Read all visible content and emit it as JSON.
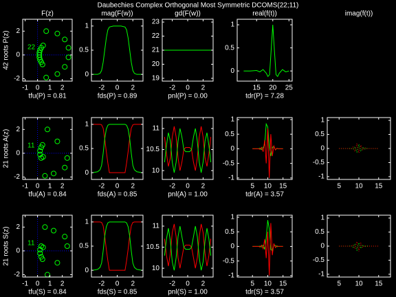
{
  "title": "Daubechies Complex Orthogonal Most Symmetric DCOMS(22;11)",
  "chart_data": [
    {
      "type": "scatter",
      "title": "F(z)",
      "xlabel": "tfu(P) = 0.81",
      "ylabel": "42 roots P(z)",
      "annotation": "22",
      "zero_lines": true,
      "xlim": [
        -1.2,
        2.8
      ],
      "ylim": [
        -2.2,
        3.0
      ],
      "xticks": [
        -1,
        0,
        1,
        2
      ],
      "yticks": [
        -2,
        0,
        2
      ],
      "series": [
        {
          "color": "#00ff00",
          "x": [
            0.7,
            1.6,
            2.2,
            2.5,
            2.5,
            2.2,
            1.6,
            0.7,
            0.3,
            0.2,
            0.15,
            0.15,
            0.15,
            0.2,
            0.3,
            0.4,
            0.45
          ],
          "values": [
            2.0,
            1.8,
            1.3,
            0.6,
            -0.2,
            -1.0,
            -1.6,
            -1.9,
            0.6,
            0.4,
            0.2,
            0.0,
            -0.2,
            -0.4,
            -0.6,
            -0.8,
            0.8
          ]
        }
      ]
    },
    {
      "type": "line",
      "title": "mag(F(w))",
      "xlabel": "fds(P) = 0.89",
      "xlim": [
        -3.3,
        3.3
      ],
      "ylim": [
        -0.14,
        1.14
      ],
      "xticks": [
        -2,
        0,
        2
      ],
      "yticks": [
        0,
        0.5,
        1
      ],
      "x": [
        -3.14,
        -2.5,
        -2.2,
        -2.0,
        -1.8,
        -1.6,
        -1.4,
        -1.2,
        -1.0,
        -0.5,
        0,
        0.5,
        1.0,
        1.2,
        1.4,
        1.6,
        1.8,
        2.0,
        2.2,
        2.5,
        3.14
      ],
      "series": [
        {
          "color": "#00ff00",
          "values": [
            0,
            0,
            0.02,
            0.08,
            0.25,
            0.5,
            0.75,
            0.92,
            0.98,
            1,
            1,
            1,
            0.98,
            0.92,
            0.75,
            0.5,
            0.25,
            0.08,
            0.02,
            0,
            0
          ]
        }
      ]
    },
    {
      "type": "line",
      "title": "gd(F(w))",
      "xlabel": "pnl(P) = 0.00",
      "xlim": [
        -3.3,
        3.3
      ],
      "ylim": [
        18.8,
        23.2
      ],
      "xticks": [
        -2,
        0,
        2
      ],
      "yticks": [
        19,
        20,
        21,
        22,
        23
      ],
      "x": [
        -3.14,
        3.14
      ],
      "series": [
        {
          "color": "#00ff00",
          "values": [
            21,
            21
          ]
        }
      ]
    },
    {
      "type": "line",
      "title": "real(f(t))",
      "xlabel": "tdr(P) = 7.28",
      "xlim": [
        9,
        26
      ],
      "ylim": [
        -0.22,
        1.12
      ],
      "xticks": [
        15,
        20,
        25
      ],
      "yticks": [
        0,
        0.5,
        1
      ],
      "x": [
        11,
        13,
        15,
        16,
        17,
        18,
        18.5,
        19,
        19.5,
        20,
        20.5,
        21,
        21.5,
        22,
        23,
        24,
        25
      ],
      "series": [
        {
          "color": "#00ff00",
          "values": [
            0,
            0,
            0.01,
            -0.02,
            0.03,
            -0.05,
            -0.12,
            -0.08,
            0.45,
            1.0,
            0.45,
            -0.08,
            -0.12,
            -0.05,
            0.03,
            -0.02,
            0
          ]
        }
      ]
    },
    {
      "type": "blank",
      "title": "imag(f(t))"
    },
    {
      "type": "scatter",
      "xlabel": "tfu(A) = 0.84",
      "ylabel": "21 roots A(z)",
      "annotation": "11",
      "zero_lines": true,
      "xlim": [
        -1.2,
        2.8
      ],
      "ylim": [
        -2.2,
        3.0
      ],
      "xticks": [
        -1,
        0,
        1,
        2
      ],
      "yticks": [
        -2,
        0,
        2
      ],
      "series": [
        {
          "color": "#00ff00",
          "x": [
            0.8,
            1.6,
            2.4,
            2.2,
            1.3,
            0.6,
            0.3,
            0.2,
            0.2,
            0.3,
            0.4,
            0.45
          ],
          "values": [
            2.0,
            1.0,
            -0.4,
            -1.2,
            -1.7,
            -1.9,
            0.5,
            0.2,
            -0.1,
            -0.4,
            0.7,
            -0.3
          ]
        }
      ]
    },
    {
      "type": "line",
      "xlabel": "fds(A) = 0.85",
      "xlim": [
        -3.3,
        3.3
      ],
      "ylim": [
        -0.14,
        1.14
      ],
      "xticks": [
        -2,
        0,
        2
      ],
      "yticks": [
        0,
        0.5,
        1
      ],
      "x": [
        -3.14,
        -2.5,
        -2.2,
        -2.0,
        -1.8,
        -1.6,
        -1.4,
        -1.2,
        -1.0,
        -0.5,
        0,
        0.5,
        1.0,
        1.2,
        1.4,
        1.6,
        1.8,
        2.0,
        2.2,
        2.5,
        3.14
      ],
      "series": [
        {
          "color": "#ff0000",
          "values": [
            1,
            1,
            1,
            0.99,
            0.92,
            0.71,
            0.44,
            0.2,
            0,
            0,
            0,
            0,
            0,
            0.2,
            0.44,
            0.71,
            0.92,
            0.99,
            1,
            1,
            1
          ]
        },
        {
          "color": "#00ff00",
          "values": [
            0,
            0.02,
            0.06,
            0.15,
            0.4,
            0.7,
            0.9,
            0.98,
            1,
            1,
            1,
            1,
            1,
            0.98,
            0.9,
            0.7,
            0.4,
            0.15,
            0.06,
            0.02,
            0
          ]
        }
      ]
    },
    {
      "type": "line",
      "xlabel": "pnl(A) = 1.00",
      "xlim": [
        -3.3,
        3.3
      ],
      "ylim": [
        9.79,
        11.26
      ],
      "xticks": [
        -2,
        0,
        2
      ],
      "yticks": [
        10,
        10.5,
        11
      ],
      "x": [
        -3,
        -2.75,
        -2.5,
        -2.25,
        -2,
        -1.75,
        -1.5,
        -1.25,
        -1,
        -0.75,
        -0.5,
        -0.25,
        0,
        0.25,
        0.5,
        0.75,
        1,
        1.25,
        1.5,
        1.75,
        2,
        2.25,
        2.5,
        2.75,
        3
      ],
      "series": [
        {
          "color": "#ff0000",
          "values": [
            10.8,
            10.4,
            10.1,
            10.3,
            10.8,
            11.05,
            10.8,
            10.3,
            10.0,
            10.2,
            10.5,
            10.55,
            10.55,
            10.55,
            10.5,
            10.2,
            10.0,
            10.3,
            10.8,
            11.05,
            10.8,
            10.3,
            10.1,
            10.4,
            10.8
          ]
        },
        {
          "color": "#00ff00",
          "values": [
            10.2,
            10.6,
            10.9,
            10.7,
            10.2,
            9.95,
            10.2,
            10.7,
            11.0,
            10.8,
            10.5,
            10.45,
            10.45,
            10.45,
            10.5,
            10.8,
            11.0,
            10.7,
            10.2,
            9.95,
            10.2,
            10.7,
            10.9,
            10.6,
            10.2
          ]
        }
      ]
    },
    {
      "type": "line",
      "xlabel": "tdr(A) = 3.57",
      "xlim": [
        0,
        18
      ],
      "ylim": [
        -1.05,
        1.07
      ],
      "xticks": [
        5,
        10,
        15
      ],
      "yticks": [
        -1,
        -0.5,
        0,
        0.5,
        1
      ],
      "x": [
        5,
        5.5,
        6,
        6.5,
        7,
        7.5,
        8,
        8.5,
        9,
        9.5,
        10,
        10.5,
        11,
        11.5,
        12,
        12.5,
        13,
        13.5,
        14,
        14.5,
        15
      ],
      "series": [
        {
          "color": "#00ff00",
          "values": [
            0,
            0,
            0,
            0,
            0,
            0.02,
            -0.03,
            0.05,
            0.15,
            0.85,
            0.75,
            0.1,
            -0.25,
            0.05,
            0.08,
            -0.03,
            0.01,
            0,
            0,
            0,
            0
          ]
        },
        {
          "color": "#ff0000",
          "values": [
            0,
            0,
            0,
            0,
            0,
            -0.02,
            0.05,
            -0.1,
            0.3,
            -0.5,
            0.7,
            -1.0,
            0.5,
            -0.25,
            0.1,
            -0.04,
            0.02,
            0,
            0,
            0,
            0
          ]
        }
      ]
    },
    {
      "type": "line",
      "linestyle": ":",
      "xlim": [
        2,
        18
      ],
      "ylim": [
        -1.1,
        1.1
      ],
      "xticks": [
        5,
        10,
        15
      ],
      "yticks": [
        -1,
        -0.5,
        0,
        0.5,
        1
      ],
      "x": [
        5,
        5.5,
        6,
        6.5,
        7,
        7.5,
        8,
        8.5,
        9,
        9.5,
        10,
        10.5,
        11,
        11.5,
        12,
        12.5,
        13,
        13.5,
        14,
        14.5,
        15
      ],
      "series": [
        {
          "color": "#00ff00",
          "values": [
            0,
            0,
            0,
            0,
            0,
            0,
            0.01,
            -0.03,
            0.06,
            -0.12,
            0.15,
            -0.1,
            0.05,
            -0.02,
            0.01,
            0,
            0,
            0,
            0,
            0,
            0
          ]
        },
        {
          "color": "#ff0000",
          "values": [
            0,
            0,
            0,
            0,
            0,
            0,
            -0.02,
            0.05,
            -0.1,
            0.18,
            -0.15,
            0.12,
            -0.06,
            0.03,
            -0.01,
            0,
            0,
            0,
            0,
            0,
            0
          ]
        }
      ]
    },
    {
      "type": "scatter",
      "xlabel": "tfu(S) = 0.84",
      "ylabel": "21 roots S(z)",
      "annotation": "11",
      "zero_lines": true,
      "xlim": [
        -1.2,
        2.8
      ],
      "ylim": [
        -2.2,
        3.0
      ],
      "xticks": [
        -1,
        0,
        1,
        2
      ],
      "yticks": [
        -2,
        0,
        2
      ],
      "series": [
        {
          "color": "#00ff00",
          "x": [
            0.6,
            1.3,
            2.2,
            2.4,
            1.6,
            0.8,
            0.3,
            0.2,
            0.2,
            0.3,
            0.4,
            0.45
          ],
          "values": [
            2.0,
            1.7,
            1.2,
            0.4,
            -1.0,
            -2.0,
            0.4,
            0.1,
            -0.2,
            -0.5,
            -0.7,
            0.3
          ]
        }
      ]
    },
    {
      "type": "line",
      "xlabel": "fds(S) = 0.85",
      "xlim": [
        -3.3,
        3.3
      ],
      "ylim": [
        -0.14,
        1.14
      ],
      "xticks": [
        -2,
        0,
        2
      ],
      "yticks": [
        0,
        0.5,
        1
      ],
      "x": [
        -3.14,
        -2.5,
        -2.2,
        -2.0,
        -1.8,
        -1.6,
        -1.4,
        -1.2,
        -1.0,
        -0.5,
        0,
        0.5,
        1.0,
        1.2,
        1.4,
        1.6,
        1.8,
        2.0,
        2.2,
        2.5,
        3.14
      ],
      "series": [
        {
          "color": "#ff0000",
          "values": [
            1,
            1,
            1,
            0.99,
            0.92,
            0.71,
            0.44,
            0.2,
            0,
            0,
            0,
            0,
            0,
            0.2,
            0.44,
            0.71,
            0.92,
            0.99,
            1,
            1,
            1
          ]
        },
        {
          "color": "#00ff00",
          "values": [
            0,
            0.02,
            0.06,
            0.15,
            0.4,
            0.7,
            0.9,
            0.98,
            1,
            1,
            1,
            1,
            1,
            0.98,
            0.9,
            0.7,
            0.4,
            0.15,
            0.06,
            0.02,
            0
          ]
        }
      ]
    },
    {
      "type": "line",
      "xlabel": "pnl(S) = 1.00",
      "xlim": [
        -3.3,
        3.3
      ],
      "ylim": [
        9.79,
        11.26
      ],
      "xticks": [
        -2,
        0,
        2
      ],
      "yticks": [
        10,
        10.5,
        11
      ],
      "x": [
        -3,
        -2.75,
        -2.5,
        -2.25,
        -2,
        -1.75,
        -1.5,
        -1.25,
        -1,
        -0.75,
        -0.5,
        -0.25,
        0,
        0.25,
        0.5,
        0.75,
        1,
        1.25,
        1.5,
        1.75,
        2,
        2.25,
        2.5,
        2.75,
        3
      ],
      "series": [
        {
          "color": "#ff0000",
          "values": [
            10.7,
            10.3,
            10.05,
            10.35,
            10.85,
            11.05,
            10.75,
            10.25,
            10.0,
            10.25,
            10.5,
            10.55,
            10.55,
            10.55,
            10.5,
            10.25,
            10.0,
            10.25,
            10.75,
            11.05,
            10.85,
            10.35,
            10.05,
            10.3,
            10.7
          ]
        },
        {
          "color": "#00ff00",
          "values": [
            10.3,
            10.7,
            10.95,
            10.65,
            10.15,
            9.95,
            10.25,
            10.75,
            11.0,
            10.75,
            10.5,
            10.45,
            10.45,
            10.45,
            10.5,
            10.75,
            11.0,
            10.75,
            10.25,
            9.95,
            10.15,
            10.65,
            10.95,
            10.7,
            10.3
          ]
        }
      ]
    },
    {
      "type": "line",
      "xlabel": "tdr(S) = 3.57",
      "xlim": [
        0,
        18
      ],
      "ylim": [
        -1.05,
        1.07
      ],
      "xticks": [
        5,
        10,
        15
      ],
      "yticks": [
        -1,
        -0.5,
        0,
        0.5,
        1
      ],
      "x": [
        5,
        5.5,
        6,
        6.5,
        7,
        7.5,
        8,
        8.5,
        9,
        9.5,
        10,
        10.5,
        11,
        11.5,
        12,
        12.5,
        13,
        13.5,
        14,
        14.5,
        15
      ],
      "series": [
        {
          "color": "#00ff00",
          "values": [
            0,
            0,
            0,
            0,
            0,
            0.01,
            -0.02,
            0.04,
            -0.1,
            0.3,
            0.9,
            0.6,
            -0.1,
            -0.15,
            0.05,
            0.03,
            -0.01,
            0,
            0,
            0,
            0
          ]
        },
        {
          "color": "#ff0000",
          "values": [
            0,
            0,
            0,
            0,
            0,
            -0.02,
            0.04,
            -0.08,
            0.25,
            -0.4,
            0.5,
            -1.0,
            0.8,
            -0.3,
            0.1,
            -0.04,
            0.02,
            0,
            0,
            0,
            0
          ]
        }
      ]
    },
    {
      "type": "line",
      "linestyle": ":",
      "xlim": [
        2,
        18
      ],
      "ylim": [
        -1.1,
        1.1
      ],
      "xticks": [
        5,
        10,
        15
      ],
      "yticks": [
        -1,
        -0.5,
        0,
        0.5,
        1
      ],
      "x": [
        5,
        5.5,
        6,
        6.5,
        7,
        7.5,
        8,
        8.5,
        9,
        9.5,
        10,
        10.5,
        11,
        11.5,
        12,
        12.5,
        13,
        13.5,
        14,
        14.5,
        15
      ],
      "series": [
        {
          "color": "#00ff00",
          "values": [
            0,
            0,
            0,
            0,
            0,
            0,
            0.02,
            -0.04,
            0.08,
            -0.14,
            0.12,
            -0.08,
            0.04,
            -0.02,
            0.01,
            0,
            0,
            0,
            0,
            0,
            0
          ]
        },
        {
          "color": "#ff0000",
          "values": [
            0,
            0,
            0,
            0,
            0,
            0,
            -0.01,
            0.04,
            -0.09,
            0.16,
            -0.18,
            0.1,
            -0.05,
            0.02,
            -0.01,
            0,
            0,
            0,
            0,
            0,
            0
          ]
        }
      ]
    }
  ]
}
